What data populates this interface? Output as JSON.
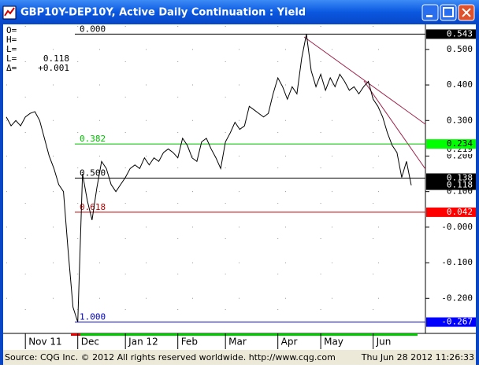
{
  "window": {
    "title": "GBP10Y-DEP10Y, Active Daily Continuation : Yield"
  },
  "info": [
    {
      "key": "O="
    },
    {
      "key": "H="
    },
    {
      "key": "L="
    },
    {
      "key": "L=",
      "value": "0.118"
    },
    {
      "key": "Δ=",
      "value": "+0.001"
    }
  ],
  "chart_data": {
    "type": "line",
    "categories": [
      null,
      null,
      null,
      null,
      "Nov 11",
      null,
      null,
      null,
      null,
      null,
      null,
      null,
      null,
      null,
      null,
      "Dec",
      null,
      null,
      null,
      null,
      null,
      null,
      null,
      null,
      null,
      "Jan 12",
      null,
      null,
      null,
      null,
      null,
      null,
      null,
      null,
      null,
      null,
      "Feb",
      null,
      null,
      null,
      null,
      null,
      null,
      null,
      null,
      null,
      "Mar",
      null,
      null,
      null,
      null,
      null,
      null,
      null,
      null,
      null,
      null,
      "Apr",
      null,
      null,
      null,
      null,
      null,
      null,
      null,
      null,
      "May",
      null,
      null,
      null,
      null,
      null,
      null,
      null,
      null,
      null,
      null,
      "Jun",
      null,
      null,
      null,
      null,
      null,
      null,
      null,
      null
    ],
    "series": [
      {
        "name": "GBP10Y-DEP10Y",
        "color": "#000000",
        "values": [
          0.31,
          0.285,
          0.3,
          0.285,
          0.31,
          0.32,
          0.325,
          0.3,
          0.25,
          0.2,
          0.165,
          0.12,
          0.1,
          -0.07,
          -0.225,
          -0.267,
          0.15,
          0.075,
          0.02,
          0.11,
          0.185,
          0.165,
          0.12,
          0.1,
          0.12,
          0.14,
          0.165,
          0.175,
          0.165,
          0.195,
          0.175,
          0.195,
          0.185,
          0.21,
          0.22,
          0.21,
          0.195,
          0.25,
          0.23,
          0.195,
          0.185,
          0.24,
          0.25,
          0.22,
          0.195,
          0.165,
          0.24,
          0.265,
          0.295,
          0.275,
          0.285,
          0.34,
          0.33,
          0.32,
          0.31,
          0.32,
          0.375,
          0.42,
          0.395,
          0.36,
          0.395,
          0.375,
          0.475,
          0.543,
          0.44,
          0.395,
          0.43,
          0.385,
          0.42,
          0.395,
          0.43,
          0.41,
          0.385,
          0.395,
          0.375,
          0.395,
          0.41,
          0.36,
          0.34,
          0.31,
          0.265,
          0.23,
          0.21,
          0.14,
          0.185,
          0.118
        ]
      }
    ],
    "ylim": [
      -0.29,
      0.566
    ],
    "yticks": [
      {
        "value": 0.5,
        "label": "0.500"
      },
      {
        "value": 0.4,
        "label": "0.400"
      },
      {
        "value": 0.3,
        "label": "0.300"
      },
      {
        "value": 0.2,
        "label": "0.200"
      },
      {
        "value": 0.1,
        "label": "0.100"
      },
      {
        "value": 0,
        "label": "-0.000"
      },
      {
        "value": -0.1,
        "label": "-0.100"
      },
      {
        "value": -0.2,
        "label": "-0.200"
      }
    ],
    "grid": true,
    "levels": [
      {
        "label": "0.000",
        "value": 0.543,
        "color": "#000000"
      },
      {
        "label": "0.382",
        "value": 0.234,
        "color": "#00c000"
      },
      {
        "label": "0.500",
        "value": 0.138,
        "color": "#000000"
      },
      {
        "label": "0.618",
        "value": 0.042,
        "color": "#c00000"
      },
      {
        "label": "1.000",
        "value": -0.267,
        "color": "#0000c0"
      }
    ],
    "price_boxes": [
      {
        "value": 0.543,
        "color": "#000000"
      },
      {
        "value": 0.219,
        "color": "#ffffff"
      },
      {
        "value": 0.234,
        "color": "#00ff00"
      },
      {
        "value": 0.138,
        "color": "#000000"
      },
      {
        "value": 0.118,
        "color": "#000000"
      },
      {
        "value": 0.042,
        "color": "#ff0000"
      },
      {
        "value": -0.267,
        "color": "#0000ff"
      }
    ]
  },
  "footer": {
    "source": "Source: CQG Inc. © 2012 All rights reserved worldwide. http://www.cqg.com",
    "timestamp": "Thu Jun 28 2012 11:26:33"
  }
}
